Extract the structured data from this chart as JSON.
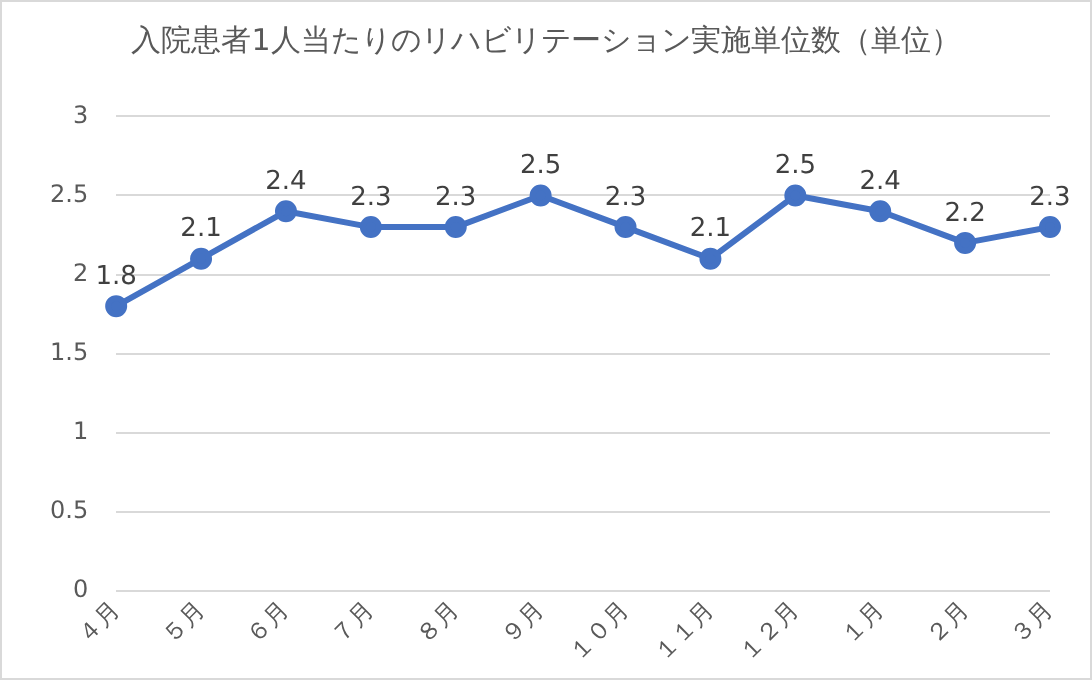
{
  "chart_data": {
    "type": "line",
    "title": "入院患者1人当たりのリハビリテーション実施単位数（単位）",
    "categories": [
      "４月",
      "５月",
      "６月",
      "７月",
      "８月",
      "９月",
      "１０月",
      "１１月",
      "１２月",
      "１月",
      "２月",
      "３月"
    ],
    "series": [
      {
        "color": "#4472c4",
        "values": [
          1.8,
          2.1,
          2.4,
          2.3,
          2.3,
          2.5,
          2.3,
          2.1,
          2.5,
          2.4,
          2.2,
          2.3
        ]
      }
    ],
    "ylim": [
      0,
      3
    ],
    "yticks": [
      0,
      0.5,
      1,
      1.5,
      2,
      2.5,
      3
    ],
    "grid": "y",
    "legend": false,
    "marker": "circle",
    "line_style": "solid",
    "data_labels": true
  }
}
